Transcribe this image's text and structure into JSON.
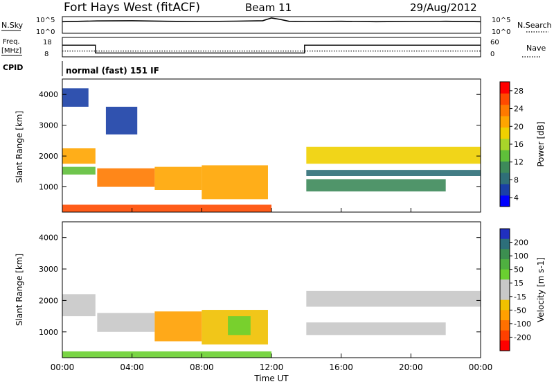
{
  "header": {
    "title": "Fort Hays West (fitACF)",
    "beam": "Beam 11",
    "date": "29/Aug/2012"
  },
  "status_panels": {
    "nsky_label": "N.Sky",
    "nsearch_label": "N.Search",
    "freq_label_1": "Freq.",
    "freq_label_2": "[MHz]",
    "nave_label": "Nave",
    "cpid_label": "CPID",
    "cpid_value": "normal (fast) 151 IF",
    "noise_ticks": {
      "top": "10^5",
      "bottom": "10^0"
    },
    "freq_ticks": [
      "18",
      "8"
    ],
    "nave_ticks": [
      "60",
      "0"
    ]
  },
  "colorbars": {
    "power": {
      "label": "Power [dB]",
      "ticks": [
        "4",
        "8",
        "12",
        "16",
        "20",
        "24",
        "28"
      ],
      "colors": [
        "#0000ff",
        "#1a3fa6",
        "#2f6f78",
        "#3d8a5a",
        "#5fbf3a",
        "#a8d42a",
        "#f0d000",
        "#ffa500",
        "#ff7a00",
        "#ff4a00",
        "#ff0000"
      ]
    },
    "velocity": {
      "label": "Velocity [m s-1]",
      "ticks": [
        "200",
        "100",
        "50",
        "15",
        "-15",
        "-50",
        "-100",
        "-200"
      ],
      "colors": [
        "#2030c0",
        "#2d6f7a",
        "#3c8f50",
        "#4fb040",
        "#6ad030",
        "#c8c8c8",
        "#c8c8c8",
        "#f0c000",
        "#ffa000",
        "#ff7000",
        "#ff4000",
        "#ff0000"
      ]
    }
  },
  "axes": {
    "ylabel": "Slant Range [km]",
    "xlabel": "Time UT",
    "xticks": [
      "00:00",
      "04:00",
      "08:00",
      "12:00",
      "16:00",
      "20:00",
      "00:00"
    ],
    "yticks": [
      "1000",
      "2000",
      "3000",
      "4000"
    ]
  },
  "chart_data": [
    {
      "type": "line",
      "title": "N.Sky / N.Search",
      "x_range_hours": [
        0,
        24
      ],
      "yscale": "log",
      "ylim": [
        1,
        100000
      ],
      "series": [
        {
          "name": "N.Sky",
          "x": [
            0,
            2,
            4,
            6,
            8,
            10,
            11.5,
            12,
            12.5,
            13,
            14,
            16,
            18,
            20,
            22,
            24
          ],
          "values": [
            3000,
            5000,
            6000,
            4000,
            3500,
            4500,
            6000,
            40000,
            15000,
            4000,
            3500,
            4000,
            3000,
            3500,
            4000,
            3000
          ]
        }
      ]
    },
    {
      "type": "line",
      "title": "Freq / Nave",
      "x_range_hours": [
        0,
        24
      ],
      "series": [
        {
          "name": "Freq.",
          "x": [
            0,
            1.9,
            1.9,
            13.9,
            13.9,
            24
          ],
          "values": [
            14,
            14,
            10,
            10,
            14,
            14
          ]
        },
        {
          "name": "Nave",
          "x": [
            0,
            24
          ],
          "values": [
            18,
            18
          ]
        }
      ]
    },
    {
      "type": "heatmap",
      "title": "Power [dB]",
      "x_range_hours": [
        0,
        24
      ],
      "ylim": [
        180,
        4500
      ],
      "bands": [
        {
          "t0": 0,
          "t1": 1.9,
          "r0": 1750,
          "r1": 2250,
          "value": 22
        },
        {
          "t0": 0,
          "t1": 1.9,
          "r0": 1400,
          "r1": 1650,
          "value": 14
        },
        {
          "t0": 2.0,
          "t1": 5.3,
          "r0": 1000,
          "r1": 1600,
          "value": 24
        },
        {
          "t0": 5.3,
          "t1": 8.0,
          "r0": 900,
          "r1": 1650,
          "value": 20
        },
        {
          "t0": 8.0,
          "t1": 11.8,
          "r0": 600,
          "r1": 1700,
          "value": 22
        },
        {
          "t0": 0,
          "t1": 12.0,
          "r0": 180,
          "r1": 420,
          "value": 26
        },
        {
          "t0": 14.0,
          "t1": 24.0,
          "r0": 1750,
          "r1": 2300,
          "value": 18
        },
        {
          "t0": 14.0,
          "t1": 22.0,
          "r0": 850,
          "r1": 1250,
          "value": 10
        },
        {
          "t0": 14.0,
          "t1": 24.0,
          "r0": 1350,
          "r1": 1550,
          "value": 8
        },
        {
          "t0": 0,
          "t1": 1.5,
          "r0": 3600,
          "r1": 4200,
          "value": 6
        },
        {
          "t0": 2.5,
          "t1": 4.3,
          "r0": 2700,
          "r1": 3600,
          "value": 7
        }
      ]
    },
    {
      "type": "heatmap",
      "title": "Velocity [m s-1]",
      "x_range_hours": [
        0,
        24
      ],
      "ylim": [
        180,
        4500
      ],
      "bands": [
        {
          "t0": 0,
          "t1": 1.9,
          "r0": 1500,
          "r1": 2200,
          "value": 0
        },
        {
          "t0": 2.0,
          "t1": 5.3,
          "r0": 1000,
          "r1": 1600,
          "value": 0
        },
        {
          "t0": 5.3,
          "t1": 8.0,
          "r0": 700,
          "r1": 1650,
          "value": -60
        },
        {
          "t0": 8.0,
          "t1": 11.8,
          "r0": 600,
          "r1": 1700,
          "value": -40
        },
        {
          "t0": 9.5,
          "t1": 10.8,
          "r0": 900,
          "r1": 1500,
          "value": 30
        },
        {
          "t0": 14.0,
          "t1": 24.0,
          "r0": 1800,
          "r1": 2300,
          "value": 0
        },
        {
          "t0": 14.0,
          "t1": 22.0,
          "r0": 900,
          "r1": 1300,
          "value": -10
        },
        {
          "t0": 0,
          "t1": 12.0,
          "r0": 180,
          "r1": 380,
          "value": 25
        }
      ]
    }
  ]
}
